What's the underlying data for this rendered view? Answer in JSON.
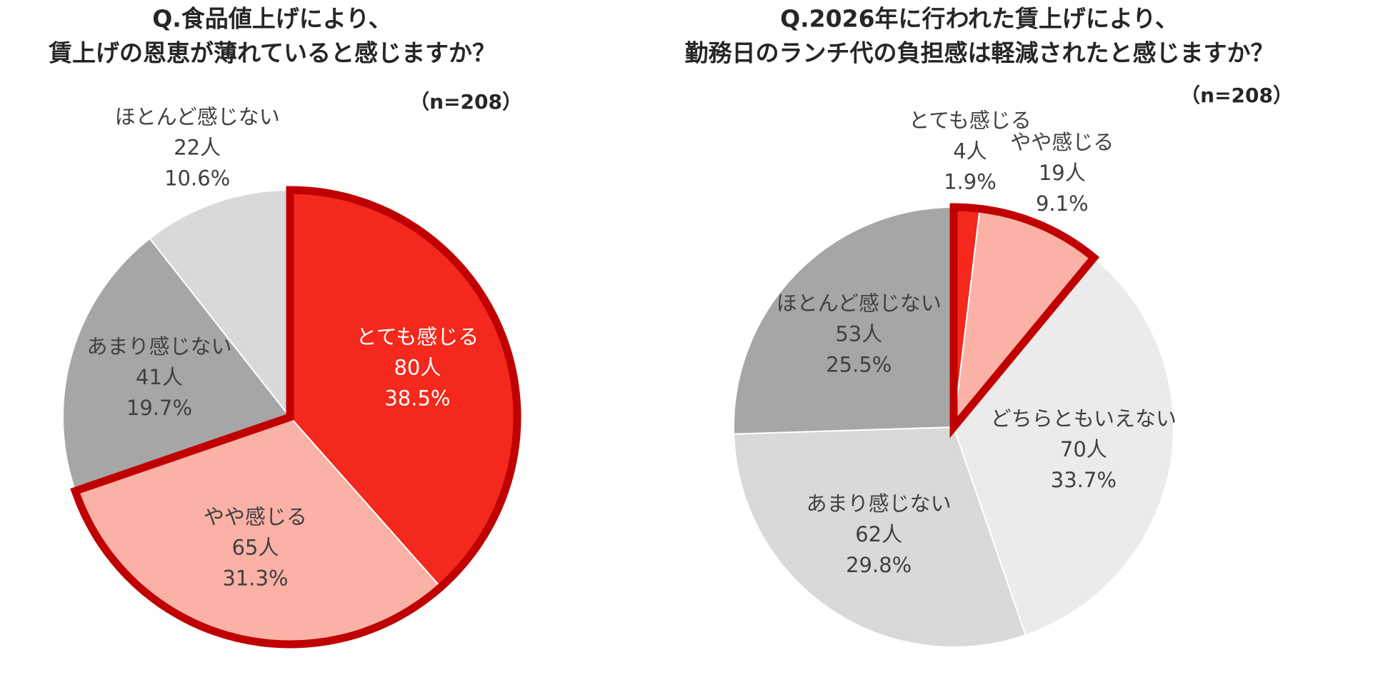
{
  "chart_data": [
    {
      "type": "pie",
      "title": [
        "Q.食品値上げにより、",
        "賃上げの恩恵が薄れていると感じますか？"
      ],
      "subtitle": "（n=208）",
      "categories": [
        "とても感じる",
        "やや感じる",
        "あまり感じない",
        "ほとんど感じない"
      ],
      "values": [
        38.5,
        31.3,
        19.7,
        10.6
      ],
      "value_labels": [
        "38.5%",
        "31.3%",
        "19.7%",
        "10.6%"
      ],
      "counts": [
        80,
        65,
        41,
        22
      ],
      "count_labels": [
        "80人",
        "65人",
        "41人",
        "22人"
      ],
      "colors": [
        "#f4281c",
        "#fbb1a6",
        "#a6a6a6",
        "#d9d9d9"
      ],
      "label_colors": [
        "#ffffff",
        "#404040",
        "#404040",
        "#404040"
      ],
      "outlined": [
        0,
        1
      ],
      "outline_color": "#c00000"
    },
    {
      "type": "pie",
      "title": [
        "Q.2026年に行われた賃上げにより、",
        "勤務日のランチ代の負担感は軽減されたと感じますか？"
      ],
      "subtitle": "（n=208）",
      "categories": [
        "とても感じる",
        "やや感じる",
        "どちらともいえない",
        "あまり感じない",
        "ほとんど感じない"
      ],
      "values": [
        1.9,
        9.1,
        33.7,
        29.8,
        25.5
      ],
      "value_labels": [
        "1.9%",
        "9.1%",
        "33.7%",
        "29.8%",
        "25.5%"
      ],
      "counts": [
        4,
        19,
        70,
        62,
        53
      ],
      "count_labels": [
        "4人",
        "19人",
        "70人",
        "62人",
        "53人"
      ],
      "colors": [
        "#f4281c",
        "#fbb1a6",
        "#ebebeb",
        "#d9d9d9",
        "#a6a6a6"
      ],
      "label_colors": [
        "#404040",
        "#404040",
        "#404040",
        "#404040",
        "#404040"
      ],
      "outlined": [
        0,
        1
      ],
      "outline_color": "#c00000"
    }
  ]
}
